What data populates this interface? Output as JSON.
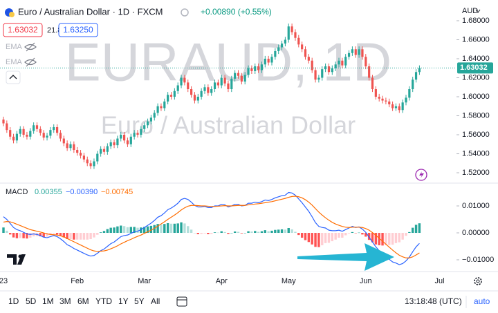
{
  "header": {
    "symbol": "Euro / Australian Dollar · 1D · FXCM",
    "change": "+0.00890 (+0.55%)",
    "spread": "21.8",
    "buy": "1.63250",
    "indicators": [
      "EMA",
      "EMA"
    ],
    "currency": "AUD",
    "watermark": "EURAUD, 1D",
    "watermark_subtitle": "Euro / Australian Dollar"
  },
  "chart_data": [
    {
      "type": "candlestick",
      "categories": [
        "23",
        null,
        null,
        null,
        null,
        null,
        null,
        null,
        null,
        null,
        null,
        null,
        null,
        null,
        null,
        null,
        null,
        null,
        null,
        null,
        null,
        null,
        "Feb",
        null,
        null,
        null,
        null,
        null,
        null,
        null,
        null,
        null,
        null,
        null,
        null,
        null,
        null,
        null,
        null,
        null,
        null,
        null,
        "Mar",
        null,
        null,
        null,
        null,
        null,
        null,
        null,
        null,
        null,
        null,
        null,
        null,
        null,
        null,
        null,
        null,
        null,
        null,
        null,
        null,
        null,
        null,
        "Apr",
        null,
        null,
        null,
        null,
        null,
        null,
        null,
        null,
        null,
        null,
        null,
        null,
        null,
        null,
        null,
        null,
        null,
        null,
        null,
        "May",
        null,
        null,
        null,
        null,
        null,
        null,
        null,
        null,
        null,
        null,
        null,
        null,
        null,
        null,
        null,
        null,
        null,
        null,
        null,
        null,
        null,
        null,
        "Jun",
        null,
        null,
        null,
        null,
        null,
        null,
        null,
        null,
        null,
        null,
        null,
        null,
        null,
        null,
        null,
        null,
        null,
        null,
        null,
        null,
        null,
        "Jul",
        null,
        null,
        null,
        null
      ],
      "open": [
        1.576,
        1.572,
        1.565,
        1.558,
        1.554,
        1.561,
        1.566,
        1.56,
        1.558,
        1.564,
        1.57,
        1.566,
        1.562,
        1.557,
        1.559,
        1.565,
        1.568,
        1.562,
        1.556,
        1.551,
        1.546,
        1.55,
        1.544,
        1.541,
        1.538,
        1.534,
        1.53,
        1.527,
        1.532,
        1.54,
        1.545,
        1.542,
        1.548,
        1.552,
        1.549,
        1.556,
        1.56,
        1.554,
        1.55,
        1.558,
        1.562,
        1.56,
        1.566,
        1.57,
        1.574,
        1.578,
        1.583,
        1.59,
        1.588,
        1.595,
        1.602,
        1.6,
        1.606,
        1.612,
        1.62,
        1.615,
        1.608,
        1.602,
        1.596,
        1.6,
        1.606,
        1.61,
        1.604,
        1.608,
        1.615,
        1.612,
        1.62,
        1.614,
        1.608,
        1.619,
        1.625,
        1.622,
        1.616,
        1.623,
        1.63,
        1.627,
        1.632,
        1.628,
        1.634,
        1.64,
        1.636,
        1.642,
        1.648,
        1.652,
        1.656,
        1.66,
        1.674,
        1.668,
        1.662,
        1.655,
        1.65,
        1.642,
        1.638,
        1.628,
        1.618,
        1.62,
        1.629,
        1.632,
        1.626,
        1.63,
        1.634,
        1.638,
        1.633,
        1.642,
        1.646,
        1.65,
        1.644,
        1.65,
        1.642,
        1.632,
        1.62,
        1.608,
        1.6,
        1.598,
        1.596,
        1.595,
        1.592,
        1.588,
        1.59,
        1.586,
        1.594,
        1.599,
        1.608,
        1.618,
        1.626,
        null,
        null,
        null,
        null,
        null,
        null,
        null,
        null,
        null,
        null
      ],
      "high": [
        1.579,
        1.575,
        1.568,
        1.561,
        1.564,
        1.569,
        1.569,
        1.563,
        1.567,
        1.573,
        1.573,
        1.569,
        1.565,
        1.562,
        1.568,
        1.571,
        1.571,
        1.565,
        1.559,
        1.554,
        1.553,
        1.553,
        1.547,
        1.544,
        1.541,
        1.537,
        1.533,
        1.535,
        1.543,
        1.548,
        1.548,
        1.551,
        1.555,
        1.555,
        1.559,
        1.563,
        1.563,
        1.557,
        1.561,
        1.565,
        1.565,
        1.569,
        1.573,
        1.577,
        1.581,
        1.586,
        1.593,
        1.593,
        1.598,
        1.605,
        1.605,
        1.609,
        1.615,
        1.623,
        1.623,
        1.618,
        1.611,
        1.605,
        1.603,
        1.609,
        1.613,
        1.613,
        1.611,
        1.618,
        1.618,
        1.623,
        1.623,
        1.617,
        1.622,
        1.628,
        1.628,
        1.625,
        1.626,
        1.633,
        1.633,
        1.635,
        1.635,
        1.637,
        1.643,
        1.643,
        1.645,
        1.651,
        1.655,
        1.659,
        1.663,
        1.677,
        1.677,
        1.671,
        1.665,
        1.658,
        1.653,
        1.645,
        1.641,
        1.631,
        1.623,
        1.632,
        1.635,
        1.635,
        1.633,
        1.637,
        1.641,
        1.641,
        1.645,
        1.649,
        1.653,
        1.653,
        1.653,
        1.653,
        1.645,
        1.635,
        1.623,
        1.611,
        1.603,
        1.601,
        1.599,
        1.598,
        1.595,
        1.593,
        1.593,
        1.597,
        1.602,
        1.611,
        1.621,
        1.629,
        1.633,
        null,
        null,
        null,
        null,
        null,
        null,
        null,
        null,
        null,
        null
      ],
      "low": [
        1.569,
        1.562,
        1.555,
        1.551,
        1.551,
        1.558,
        1.557,
        1.555,
        1.555,
        1.561,
        1.563,
        1.559,
        1.554,
        1.554,
        1.556,
        1.562,
        1.559,
        1.553,
        1.548,
        1.543,
        1.543,
        1.541,
        1.538,
        1.535,
        1.531,
        1.527,
        1.524,
        1.524,
        1.529,
        1.537,
        1.539,
        1.539,
        1.545,
        1.546,
        1.546,
        1.553,
        1.551,
        1.547,
        1.547,
        1.555,
        1.557,
        1.557,
        1.563,
        1.567,
        1.571,
        1.575,
        1.58,
        1.585,
        1.585,
        1.592,
        1.597,
        1.597,
        1.603,
        1.609,
        1.612,
        1.605,
        1.599,
        1.593,
        1.593,
        1.597,
        1.603,
        1.601,
        1.601,
        1.605,
        1.609,
        1.609,
        1.611,
        1.605,
        1.605,
        1.616,
        1.619,
        1.613,
        1.613,
        1.62,
        1.624,
        1.624,
        1.625,
        1.625,
        1.631,
        1.633,
        1.633,
        1.639,
        1.645,
        1.649,
        1.653,
        1.657,
        1.665,
        1.659,
        1.652,
        1.647,
        1.639,
        1.635,
        1.625,
        1.615,
        1.615,
        1.617,
        1.626,
        1.623,
        1.623,
        1.627,
        1.631,
        1.63,
        1.63,
        1.639,
        1.643,
        1.641,
        1.641,
        1.639,
        1.629,
        1.617,
        1.605,
        1.597,
        1.595,
        1.593,
        1.592,
        1.589,
        1.585,
        1.585,
        1.583,
        1.583,
        1.591,
        1.596,
        1.605,
        1.615,
        1.623,
        null,
        null,
        null,
        null,
        null,
        null,
        null,
        null,
        null,
        null
      ],
      "close": [
        1.572,
        1.565,
        1.558,
        1.554,
        1.561,
        1.566,
        1.56,
        1.558,
        1.564,
        1.57,
        1.566,
        1.562,
        1.557,
        1.559,
        1.565,
        1.568,
        1.562,
        1.556,
        1.551,
        1.546,
        1.55,
        1.544,
        1.541,
        1.538,
        1.534,
        1.53,
        1.527,
        1.532,
        1.54,
        1.545,
        1.542,
        1.548,
        1.552,
        1.549,
        1.556,
        1.56,
        1.554,
        1.55,
        1.558,
        1.562,
        1.56,
        1.566,
        1.57,
        1.574,
        1.578,
        1.583,
        1.59,
        1.588,
        1.595,
        1.602,
        1.6,
        1.606,
        1.612,
        1.62,
        1.615,
        1.608,
        1.602,
        1.596,
        1.6,
        1.606,
        1.61,
        1.604,
        1.608,
        1.615,
        1.612,
        1.62,
        1.614,
        1.608,
        1.619,
        1.625,
        1.622,
        1.616,
        1.623,
        1.63,
        1.627,
        1.632,
        1.628,
        1.634,
        1.64,
        1.636,
        1.642,
        1.648,
        1.652,
        1.656,
        1.66,
        1.674,
        1.668,
        1.662,
        1.655,
        1.65,
        1.642,
        1.638,
        1.628,
        1.618,
        1.62,
        1.629,
        1.632,
        1.626,
        1.63,
        1.634,
        1.638,
        1.633,
        1.642,
        1.646,
        1.65,
        1.644,
        1.65,
        1.642,
        1.632,
        1.62,
        1.608,
        1.6,
        1.598,
        1.596,
        1.595,
        1.592,
        1.588,
        1.59,
        1.586,
        1.594,
        1.599,
        1.608,
        1.618,
        1.626,
        1.63032,
        null,
        null,
        null,
        null,
        null,
        null,
        null,
        null,
        null,
        null
      ],
      "up_color": "#26a69a",
      "down_color": "#ef5350",
      "ylim": [
        1.5113,
        1.696
      ],
      "yticks": [
        {
          "value": 1.52,
          "label": "1.52000"
        },
        {
          "value": 1.54,
          "label": "1.54000"
        },
        {
          "value": 1.56,
          "label": "1.56000"
        },
        {
          "value": 1.58,
          "label": "1.58000"
        },
        {
          "value": 1.6,
          "label": "1.60000"
        },
        {
          "value": 1.62,
          "label": "1.62000"
        },
        {
          "value": 1.64,
          "label": "1.64000"
        },
        {
          "value": 1.66,
          "label": "1.66000"
        },
        {
          "value": 1.68,
          "label": "1.68000"
        }
      ]
    },
    {
      "type": "macd",
      "title": "MACD",
      "legend_labels": [
        "0.00355",
        "−0.00390",
        "−0.00745"
      ],
      "histogram": {
        "colors": {
          "up_grow": "#26a69a",
          "up_fall": "#b2dfdb",
          "down_grow": "#ffcdd2",
          "down_fall": "#ff5252"
        },
        "values": [
          0.002,
          0.0008,
          -0.0006,
          -0.0017,
          -0.002,
          -0.0019,
          -0.002,
          -0.0021,
          -0.0018,
          -0.0013,
          -0.0012,
          -0.0013,
          -0.0016,
          -0.0014,
          -0.0008,
          -0.0003,
          -0.0006,
          -0.0011,
          -0.0017,
          -0.0023,
          -0.0023,
          -0.0025,
          -0.0025,
          -0.0025,
          -0.0025,
          -0.0025,
          -0.0023,
          -0.0017,
          -0.0007,
          0.0002,
          0.0007,
          0.0014,
          0.0019,
          0.002,
          0.0024,
          0.0027,
          0.0025,
          0.0021,
          0.0022,
          0.0022,
          0.0019,
          0.002,
          0.0022,
          0.0024,
          0.0026,
          0.0029,
          0.0033,
          0.0031,
          0.0033,
          0.0036,
          0.0034,
          0.0034,
          0.0035,
          0.0039,
          0.0035,
          0.0025,
          0.0012,
          0.0,
          -0.0005,
          -0.0004,
          -0.0002,
          -0.0005,
          -0.0004,
          0.0002,
          0.0001,
          0.0006,
          0.0003,
          -0.0004,
          0.0,
          0.0005,
          0.0004,
          -0.0002,
          0.0,
          0.0006,
          0.0005,
          0.0007,
          0.0004,
          0.0006,
          0.001,
          0.0006,
          0.0008,
          0.0011,
          0.0012,
          0.0013,
          0.0012,
          0.0018,
          0.0013,
          0.0004,
          -0.0008,
          -0.0018,
          -0.0027,
          -0.0034,
          -0.0043,
          -0.0052,
          -0.0053,
          -0.0046,
          -0.0038,
          -0.0037,
          -0.0031,
          -0.0025,
          -0.0018,
          -0.0018,
          -0.0009,
          -0.0002,
          0.0003,
          -0.0001,
          0.0001,
          -0.0006,
          -0.0014,
          -0.0026,
          -0.0035,
          -0.0043,
          -0.0046,
          -0.0047,
          -0.0046,
          -0.0045,
          -0.0044,
          -0.0038,
          -0.0035,
          -0.0025,
          -0.0011,
          0.0003,
          0.0019,
          0.003,
          0.00355,
          null,
          null,
          null,
          null,
          null,
          null,
          null,
          null,
          null,
          null
        ]
      },
      "macd": {
        "color": "#2962ff",
        "values": [
          0.006,
          0.005,
          0.0035,
          0.002,
          0.0012,
          0.0008,
          0.0002,
          -0.0004,
          -0.0006,
          -0.0004,
          -0.0006,
          -0.001,
          -0.0016,
          -0.0018,
          -0.0014,
          -0.001,
          -0.0014,
          -0.0022,
          -0.0032,
          -0.0044,
          -0.005,
          -0.0058,
          -0.0064,
          -0.007,
          -0.0076,
          -0.0082,
          -0.0086,
          -0.0084,
          -0.0076,
          -0.0066,
          -0.006,
          -0.005,
          -0.004,
          -0.0034,
          -0.0024,
          -0.0014,
          -0.001,
          -0.0008,
          -0.0002,
          0.0004,
          0.0006,
          0.0012,
          0.002,
          0.0028,
          0.0036,
          0.0046,
          0.0058,
          0.0064,
          0.0074,
          0.0086,
          0.0092,
          0.01,
          0.011,
          0.0124,
          0.0128,
          0.0124,
          0.0114,
          0.0102,
          0.0096,
          0.0096,
          0.0098,
          0.0094,
          0.0094,
          0.01,
          0.01,
          0.0106,
          0.0104,
          0.0096,
          0.01,
          0.0106,
          0.0106,
          0.01,
          0.0102,
          0.011,
          0.011,
          0.0114,
          0.0112,
          0.0116,
          0.0122,
          0.012,
          0.0124,
          0.013,
          0.0134,
          0.0138,
          0.014,
          0.015,
          0.0148,
          0.014,
          0.0126,
          0.0112,
          0.0096,
          0.008,
          0.006,
          0.0038,
          0.0024,
          0.002,
          0.0018,
          0.001,
          0.0008,
          0.0008,
          0.001,
          0.0006,
          0.0012,
          0.0018,
          0.0024,
          0.002,
          0.0022,
          0.0014,
          0.0002,
          -0.0016,
          -0.0034,
          -0.0052,
          -0.0066,
          -0.0078,
          -0.0088,
          -0.0098,
          -0.0108,
          -0.0112,
          -0.0118,
          -0.0114,
          -0.0104,
          -0.009,
          -0.007,
          -0.0052,
          -0.0039,
          null,
          null,
          null,
          null,
          null,
          null,
          null,
          null,
          null,
          null
        ]
      },
      "signal": {
        "color": "#ff6d00",
        "values": [
          0.004,
          0.0042,
          0.0041,
          0.0037,
          0.0032,
          0.0027,
          0.0022,
          0.0017,
          0.0012,
          0.0009,
          0.0006,
          0.0003,
          0.0,
          -0.0004,
          -0.0006,
          -0.0007,
          -0.0008,
          -0.0011,
          -0.0015,
          -0.0021,
          -0.0027,
          -0.0033,
          -0.0039,
          -0.0045,
          -0.0051,
          -0.0057,
          -0.0063,
          -0.0067,
          -0.0069,
          -0.0068,
          -0.0067,
          -0.0064,
          -0.0059,
          -0.0054,
          -0.0048,
          -0.0041,
          -0.0035,
          -0.0029,
          -0.0024,
          -0.0018,
          -0.0013,
          -0.0008,
          -0.0002,
          0.0004,
          0.001,
          0.0017,
          0.0025,
          0.0033,
          0.0041,
          0.005,
          0.0058,
          0.0066,
          0.0075,
          0.0085,
          0.0093,
          0.0099,
          0.0102,
          0.0102,
          0.0101,
          0.01,
          0.01,
          0.0099,
          0.0098,
          0.0098,
          0.0099,
          0.01,
          0.0101,
          0.01,
          0.01,
          0.0101,
          0.0102,
          0.0102,
          0.0102,
          0.0104,
          0.0105,
          0.0107,
          0.0108,
          0.011,
          0.0112,
          0.0114,
          0.0116,
          0.0119,
          0.0122,
          0.0125,
          0.0128,
          0.0132,
          0.0135,
          0.0136,
          0.0134,
          0.013,
          0.0123,
          0.0114,
          0.0103,
          0.009,
          0.0077,
          0.0066,
          0.0056,
          0.0047,
          0.0039,
          0.0033,
          0.0028,
          0.0024,
          0.0021,
          0.002,
          0.0021,
          0.0021,
          0.0021,
          0.002,
          0.0016,
          0.001,
          0.0001,
          -0.0009,
          -0.002,
          -0.0031,
          -0.0042,
          -0.0053,
          -0.0064,
          -0.0074,
          -0.0083,
          -0.0089,
          -0.0093,
          -0.0093,
          -0.0089,
          -0.0082,
          -0.00745,
          null,
          null,
          null,
          null,
          null,
          null,
          null,
          null,
          null,
          null
        ]
      },
      "ylim": [
        -0.0141,
        0.0177
      ],
      "yticks": [
        {
          "value": 0.01,
          "label": "0.01000"
        },
        {
          "value": 0,
          "label": "0.00000"
        },
        {
          "value": -0.01,
          "label": "−0.01000"
        }
      ]
    }
  ],
  "toolbar": {
    "ranges": [
      "1D",
      "5D",
      "1M",
      "3M",
      "6M",
      "YTD",
      "1Y",
      "5Y",
      "All"
    ],
    "clock": "13:18:48 (UTC)",
    "scale": "auto"
  }
}
